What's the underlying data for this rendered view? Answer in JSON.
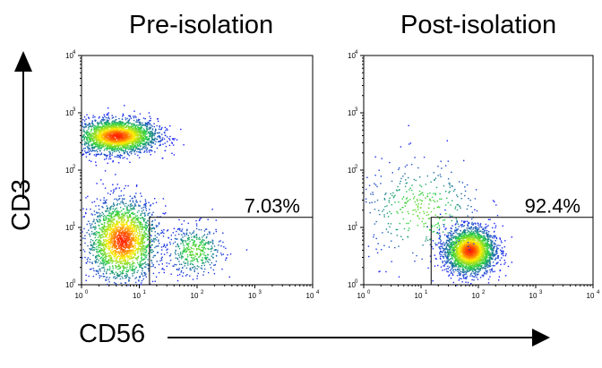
{
  "chart_data": [
    {
      "type": "scatter",
      "title": "Pre-isolation",
      "xlabel": "CD56",
      "ylabel": "CD3",
      "x_scale": "log",
      "y_scale": "log",
      "xlim": [
        1,
        10000
      ],
      "ylim": [
        1,
        10000
      ],
      "gate": {
        "x_range": [
          15,
          10000
        ],
        "y_range": [
          1,
          15
        ],
        "label": "7.03%"
      },
      "populations": [
        {
          "name": "CD3+ CD56- cluster",
          "center_x": 4,
          "center_y": 400,
          "share": 0.55
        },
        {
          "name": "CD3- CD56- cluster",
          "center_x": 5,
          "center_y": 6,
          "share": 0.38
        },
        {
          "name": "CD56+ gated cluster",
          "center_x": 90,
          "center_y": 4,
          "share": 0.07
        }
      ]
    },
    {
      "type": "scatter",
      "title": "Post-isolation",
      "xlabel": "CD56",
      "ylabel": "CD3",
      "x_scale": "log",
      "y_scale": "log",
      "xlim": [
        1,
        10000
      ],
      "ylim": [
        1,
        10000
      ],
      "gate": {
        "x_range": [
          15,
          10000
        ],
        "y_range": [
          1,
          15
        ],
        "label": "92.4%"
      },
      "populations": [
        {
          "name": "CD56+ gated cluster",
          "center_x": 70,
          "center_y": 4,
          "share": 0.92
        },
        {
          "name": "scattered events",
          "center_x": 10,
          "center_y": 20,
          "share": 0.08
        }
      ]
    }
  ],
  "tick_labels": {
    "x": [
      "10",
      "0",
      "10",
      "1",
      "10",
      "2",
      "10",
      "3",
      "10",
      "4"
    ],
    "y": [
      "10",
      "4",
      "10",
      "3",
      "10",
      "2",
      "10",
      "1",
      "10",
      "0"
    ]
  },
  "colors": {
    "low": "#1a1aff",
    "mid": "#22cc44",
    "high": "#ffee00",
    "peak": "#ff2200"
  }
}
